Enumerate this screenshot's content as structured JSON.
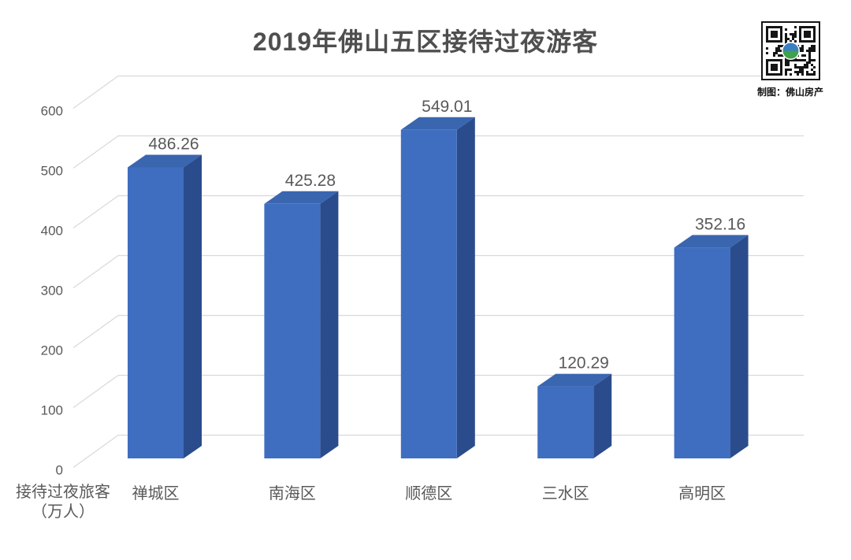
{
  "header": {
    "title": "2019年佛山五区接待过夜游客"
  },
  "qr": {
    "caption": "制图：佛山房产",
    "dark": "#151515",
    "logo_blue": "#3A7FC1",
    "logo_green": "#3FA24C"
  },
  "chart_data": {
    "type": "bar",
    "style": "3d-column",
    "title": "2019年佛山五区接待过夜游客",
    "categories": [
      "禅城区",
      "南海区",
      "顺德区",
      "三水区",
      "高明区"
    ],
    "values": [
      486.26,
      425.28,
      549.01,
      120.29,
      352.16
    ],
    "value_labels": [
      "486.26",
      "425.28",
      "549.01",
      "120.29",
      "352.16"
    ],
    "xlabel": "",
    "ylabel_lines": [
      "接待过夜旅客",
      "（万人）"
    ],
    "ylim": [
      0,
      600
    ],
    "ytick_step": 100,
    "ytick_labels": [
      "0",
      "100",
      "200",
      "300",
      "400",
      "500",
      "600"
    ],
    "grid": true,
    "legend": false,
    "colors": {
      "bar_front": "#3F6EC0",
      "bar_top": "#3A66B0",
      "bar_side": "#2B4C8C",
      "gridline": "#D9D9D9",
      "text": "#595959"
    }
  }
}
